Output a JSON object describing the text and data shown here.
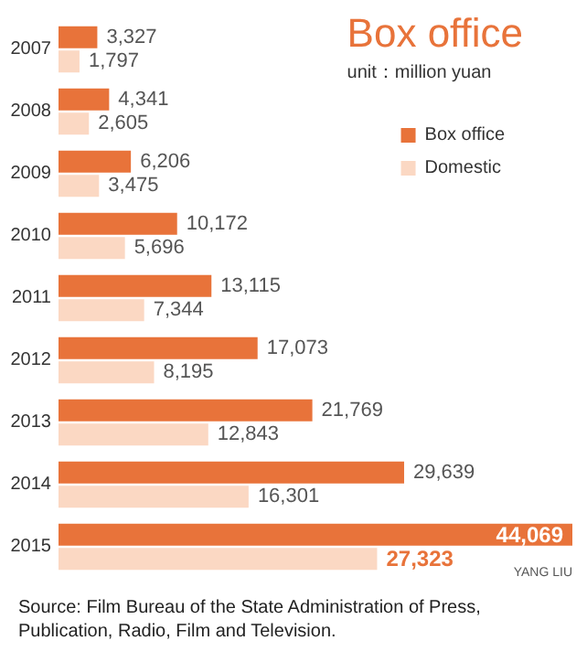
{
  "chart_data": {
    "type": "bar",
    "orientation": "horizontal",
    "title": "Box office",
    "subtitle": "unit：million yuan",
    "legend": "top right",
    "categories": [
      "2007",
      "2008",
      "2009",
      "2010",
      "2011",
      "2012",
      "2013",
      "2014",
      "2015"
    ],
    "series": [
      {
        "name": "Box office",
        "color": "#e8733a",
        "values": [
          3327,
          4341,
          6206,
          10172,
          13115,
          17073,
          21769,
          29639,
          44069
        ],
        "value_labels": [
          "3,327",
          "4,341",
          "6,206",
          "10,172",
          "13,115",
          "17,073",
          "21,769",
          "29,639",
          "44,069"
        ]
      },
      {
        "name": "Domestic",
        "color": "#fbd8c3",
        "values": [
          1797,
          2605,
          3475,
          5696,
          7344,
          8195,
          12843,
          16301,
          27323
        ],
        "value_labels": [
          "1,797",
          "2,605",
          "3,475",
          "5,696",
          "7,344",
          "8,195",
          "12,843",
          "16,301",
          "27,323"
        ]
      }
    ],
    "annotations": [
      "Source: Film Bureau of the State Administration of Press, Publication, Radio, Film and Television.",
      "YANG LIU"
    ]
  }
}
